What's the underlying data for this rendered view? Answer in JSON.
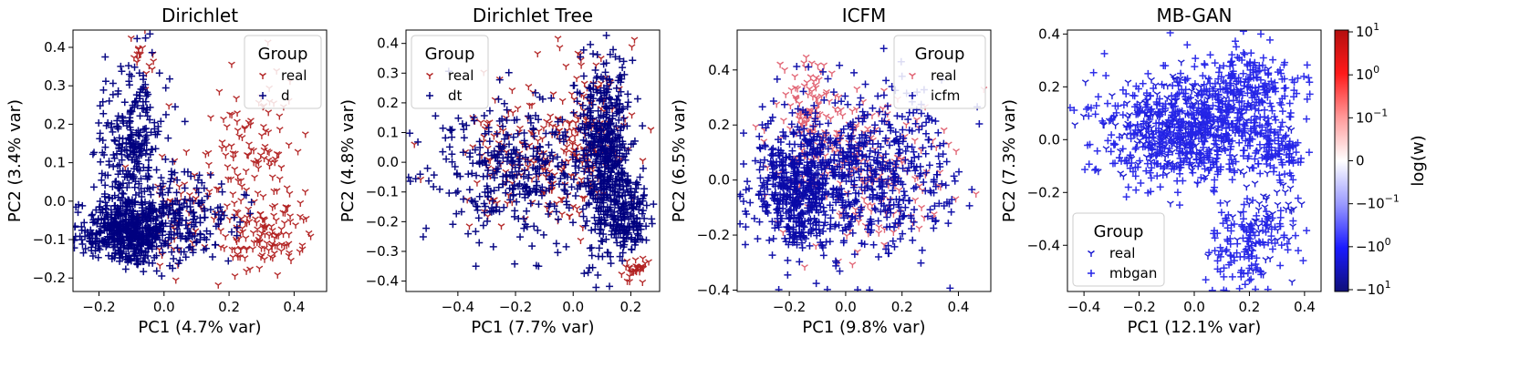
{
  "chart_data": [
    {
      "type": "scatter",
      "title": "Dirichlet",
      "xlabel": "PC1 (4.7% var)",
      "ylabel": "PC2 (3.4% var)",
      "xlim": [
        -0.28,
        0.5
      ],
      "ylim": [
        -0.235,
        0.445
      ],
      "xticks": [
        -0.2,
        0.0,
        0.2,
        0.4
      ],
      "xtick_labels": [
        "−0.2",
        "0.0",
        "0.2",
        "0.4"
      ],
      "yticks": [
        -0.2,
        -0.1,
        0.0,
        0.1,
        0.2,
        0.3,
        0.4
      ],
      "ytick_labels": [
        "−0.2",
        "−0.1",
        "0.0",
        "0.1",
        "0.2",
        "0.3",
        "0.4"
      ],
      "legend": {
        "title": "Group",
        "position": "top-right",
        "entries": [
          "real",
          "d"
        ]
      },
      "series": [
        {
          "name": "real",
          "marker": "tri_down",
          "color": "#b22222",
          "n": 300,
          "seed": 11,
          "clusters": [
            {
              "cx": 0.3,
              "cy": -0.08,
              "sx": 0.08,
              "sy": 0.05,
              "w": 0.45
            },
            {
              "cx": 0.26,
              "cy": 0.16,
              "sx": 0.09,
              "sy": 0.09,
              "w": 0.35
            },
            {
              "cx": -0.07,
              "cy": 0.38,
              "sx": 0.02,
              "sy": 0.03,
              "w": 0.05
            },
            {
              "cx": 0.05,
              "cy": 0.0,
              "sx": 0.06,
              "sy": 0.1,
              "w": 0.15
            }
          ]
        },
        {
          "name": "d",
          "marker": "plus",
          "color": "#000080",
          "n": 1000,
          "seed": 12,
          "clusters": [
            {
              "cx": -0.12,
              "cy": -0.08,
              "sx": 0.07,
              "sy": 0.04,
              "w": 0.5
            },
            {
              "cx": -0.1,
              "cy": 0.15,
              "sx": 0.05,
              "sy": 0.1,
              "w": 0.3
            },
            {
              "cx": 0.05,
              "cy": -0.04,
              "sx": 0.09,
              "sy": 0.06,
              "w": 0.2
            }
          ]
        }
      ]
    },
    {
      "type": "scatter",
      "title": "Dirichlet Tree",
      "xlabel": "PC1 (7.7% var)",
      "ylabel": "PC2 (4.8% var)",
      "xlim": [
        -0.58,
        0.3
      ],
      "ylim": [
        -0.435,
        0.445
      ],
      "xticks": [
        -0.4,
        -0.2,
        0.0,
        0.2
      ],
      "xtick_labels": [
        "−0.4",
        "−0.2",
        "0.0",
        "0.2"
      ],
      "yticks": [
        -0.4,
        -0.3,
        -0.2,
        -0.1,
        0.0,
        0.1,
        0.2,
        0.3,
        0.4
      ],
      "ytick_labels": [
        "−0.4",
        "−0.3",
        "−0.2",
        "−0.1",
        "0.0",
        "0.1",
        "0.2",
        "0.3",
        "0.4"
      ],
      "legend": {
        "title": "Group",
        "position": "top-left",
        "entries": [
          "real",
          "dt"
        ]
      },
      "series": [
        {
          "name": "real",
          "marker": "tri_down",
          "color": "#b22222",
          "n": 320,
          "seed": 21,
          "clusters": [
            {
              "cx": -0.15,
              "cy": 0.02,
              "sx": 0.13,
              "sy": 0.12,
              "w": 0.5
            },
            {
              "cx": 0.05,
              "cy": 0.1,
              "sx": 0.07,
              "sy": 0.12,
              "w": 0.4
            },
            {
              "cx": 0.22,
              "cy": -0.36,
              "sx": 0.02,
              "sy": 0.02,
              "w": 0.1
            }
          ]
        },
        {
          "name": "dt",
          "marker": "plus",
          "color": "#000080",
          "n": 1000,
          "seed": 22,
          "clusters": [
            {
              "cx": 0.11,
              "cy": 0.05,
              "sx": 0.04,
              "sy": 0.15,
              "w": 0.4
            },
            {
              "cx": 0.18,
              "cy": -0.18,
              "sx": 0.04,
              "sy": 0.07,
              "w": 0.2
            },
            {
              "cx": -0.2,
              "cy": -0.02,
              "sx": 0.16,
              "sy": 0.12,
              "w": 0.4
            }
          ]
        }
      ]
    },
    {
      "type": "scatter",
      "title": "ICFM",
      "xlabel": "PC1 (9.8% var)",
      "ylabel": "PC2 (6.5% var)",
      "xlim": [
        -0.385,
        0.515
      ],
      "ylim": [
        -0.405,
        0.545
      ],
      "xticks": [
        -0.2,
        0.0,
        0.2,
        0.4
      ],
      "xtick_labels": [
        "−0.2",
        "0.0",
        "0.2",
        "0.4"
      ],
      "yticks": [
        -0.4,
        -0.2,
        0.0,
        0.2,
        0.4
      ],
      "ytick_labels": [
        "−0.4",
        "−0.2",
        "0.0",
        "0.2",
        "0.4"
      ],
      "legend": {
        "title": "Group",
        "position": "top-right",
        "entries": [
          "real",
          "icfm"
        ]
      },
      "series": [
        {
          "name": "real",
          "marker": "tri_down",
          "color": "#e06070",
          "n": 320,
          "seed": 31,
          "clusters": [
            {
              "cx": 0.05,
              "cy": 0.05,
              "sx": 0.15,
              "sy": 0.13,
              "w": 0.7
            },
            {
              "cx": -0.12,
              "cy": 0.25,
              "sx": 0.06,
              "sy": 0.08,
              "w": 0.3
            }
          ]
        },
        {
          "name": "icfm",
          "marker": "plus",
          "color": "#0a0aa8",
          "n": 1000,
          "seed": 32,
          "clusters": [
            {
              "cx": -0.18,
              "cy": -0.05,
              "sx": 0.07,
              "sy": 0.11,
              "w": 0.4
            },
            {
              "cx": 0.05,
              "cy": 0.02,
              "sx": 0.17,
              "sy": 0.15,
              "w": 0.6
            }
          ]
        }
      ]
    },
    {
      "type": "scatter",
      "title": "MB-GAN",
      "xlabel": "PC1 (12.1% var)",
      "ylabel": "PC2 (7.3% var)",
      "xlim": [
        -0.46,
        0.46
      ],
      "ylim": [
        -0.575,
        0.415
      ],
      "xticks": [
        -0.4,
        -0.2,
        0.0,
        0.2,
        0.4
      ],
      "xtick_labels": [
        "−0.4",
        "−0.2",
        "0.0",
        "0.2",
        "0.4"
      ],
      "yticks": [
        -0.4,
        -0.2,
        0.0,
        0.2,
        0.4
      ],
      "ytick_labels": [
        "−0.4",
        "−0.2",
        "0.0",
        "0.2",
        "0.4"
      ],
      "legend": {
        "title": "Group",
        "position": "bottom-left",
        "entries": [
          "real",
          "mbgan"
        ]
      },
      "series": [
        {
          "name": "real",
          "marker": "tri_down",
          "color": "#1515d0",
          "n": 300,
          "seed": 41,
          "clusters": [
            {
              "cx": -0.05,
              "cy": 0.05,
              "sx": 0.15,
              "sy": 0.1,
              "w": 0.8
            },
            {
              "cx": 0.25,
              "cy": -0.3,
              "sx": 0.07,
              "sy": 0.12,
              "w": 0.2
            }
          ]
        },
        {
          "name": "mbgan",
          "marker": "plus",
          "color": "#2525e8",
          "n": 1000,
          "seed": 42,
          "clusters": [
            {
              "cx": -0.05,
              "cy": 0.03,
              "sx": 0.17,
              "sy": 0.1,
              "w": 0.55
            },
            {
              "cx": 0.18,
              "cy": 0.2,
              "sx": 0.1,
              "sy": 0.07,
              "w": 0.2
            },
            {
              "cx": 0.2,
              "cy": -0.4,
              "sx": 0.09,
              "sy": 0.09,
              "w": 0.15
            },
            {
              "cx": 0.3,
              "cy": -0.05,
              "sx": 0.05,
              "sy": 0.05,
              "w": 0.1
            }
          ]
        }
      ]
    }
  ],
  "colorbar": {
    "label": "log(w)",
    "scale": "symlog",
    "ticks": [
      {
        "base": "10",
        "exp": "1",
        "sign": ""
      },
      {
        "base": "10",
        "exp": "0",
        "sign": ""
      },
      {
        "base": "10",
        "exp": "−1",
        "sign": ""
      },
      {
        "plain": "0"
      },
      {
        "base": "10",
        "exp": "−1",
        "sign": "−"
      },
      {
        "base": "10",
        "exp": "0",
        "sign": "−"
      },
      {
        "base": "10",
        "exp": "1",
        "sign": "−"
      }
    ],
    "colors": [
      "#b40f0f",
      "#ff1a1a",
      "#ff9999",
      "#ffffff",
      "#9999ff",
      "#1a1aff",
      "#0f0f78"
    ]
  }
}
